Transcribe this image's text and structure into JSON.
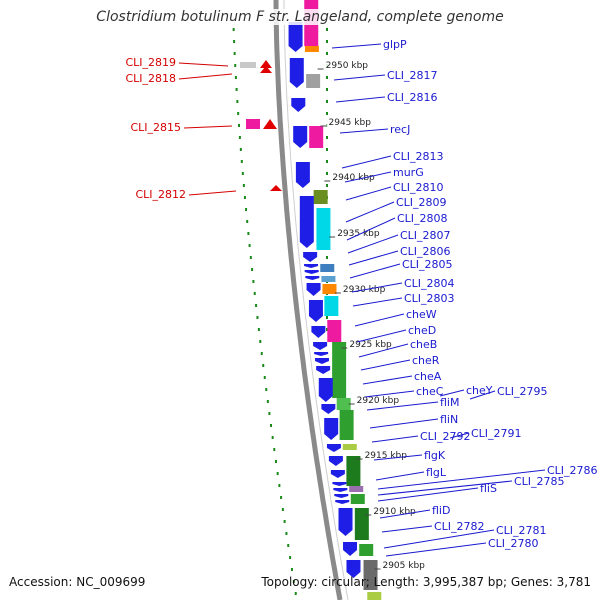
{
  "title": "Clostridium botulinum F str. Langeland, complete genome",
  "footer": {
    "accession": "Accession: NC_009699",
    "summary": "Topology: circular; Length: 3,995,387 bp; Genes: 3,781"
  },
  "colors": {
    "backbone": "#8a8a8a",
    "forward_gene": "#1e1ee6",
    "left_label": "#d40000",
    "right_label": "#1a1ad0",
    "cog_green": "#2fa02f",
    "cog_dark_green": "#1d7a1d",
    "cog_cyan": "#00d8e8",
    "cog_magenta": "#ee1aa0",
    "cog_orange": "#ff8800",
    "cog_olive": "#6b8e23",
    "cog_grey": "#a0a0a0",
    "minor_track": "#1a8a1a"
  },
  "ruler": [
    "2950 kbp",
    "2945 kbp",
    "2940 kbp",
    "2935 kbp",
    "2930 kbp",
    "2925 kbp",
    "2920 kbp",
    "2915 kbp",
    "2910 kbp",
    "2905 kbp"
  ],
  "left_labels": [
    "CLI_2819",
    "CLI_2818",
    "CLI_2815",
    "CLI_2812"
  ],
  "right_labels": [
    "glpP",
    "CLI_2817",
    "CLI_2816",
    "recJ",
    "CLI_2813",
    "murG",
    "CLI_2810",
    "CLI_2809",
    "CLI_2808",
    "CLI_2807",
    "CLI_2806",
    "CLI_2805",
    "CLI_2804",
    "CLI_2803",
    "cheW",
    "cheD",
    "cheB",
    "cheR",
    "cheA",
    "cheC",
    "cheY",
    "CLI_2795",
    "fliM",
    "fliN",
    "CLI_2792",
    "CLI_2791",
    "flgK",
    "flgL",
    "CLI_2786",
    "CLI_2785",
    "fliS",
    "fliD",
    "CLI_2782",
    "CLI_2781",
    "CLI_2780"
  ]
}
